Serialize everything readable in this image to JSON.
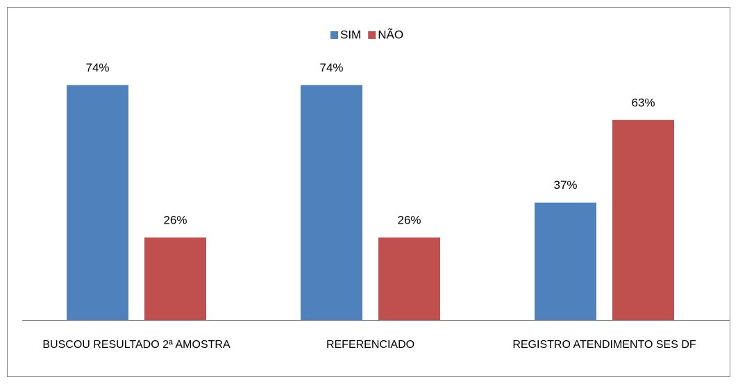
{
  "chart_data": {
    "type": "bar",
    "categories": [
      "BUSCOU RESULTADO 2ª AMOSTRA",
      "REFERENCIADO",
      "REGISTRO ATENDIMENTO SES DF"
    ],
    "series": [
      {
        "name": "SIM",
        "color": "#4f81bd",
        "values": [
          74,
          74,
          37
        ],
        "value_labels": [
          "74%",
          "74%",
          "37%"
        ]
      },
      {
        "name": "NÃO",
        "color": "#c0504d",
        "values": [
          26,
          26,
          63
        ],
        "value_labels": [
          "26%",
          "26%",
          "63%"
        ]
      }
    ],
    "ylim": [
      0,
      80
    ],
    "legend": "top"
  }
}
